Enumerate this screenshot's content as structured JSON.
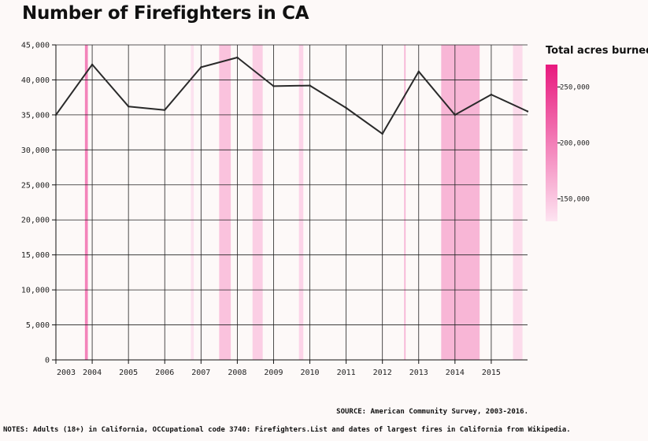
{
  "title": "Number of Firefighters in CA",
  "source": "SOURCE: American Community Survey, 2003-2016.",
  "notes": "NOTES: Adults (18+) in California, OCCupational code 3740: Firefighters.List and dates of largest fires in California from Wikipedia.",
  "colors": {
    "line": "#2a2a2a",
    "fire_low": "#fde4f1",
    "fire_high": "#e8197e",
    "grid": "#222222"
  },
  "chart_data": {
    "type": "line",
    "title": "Number of Firefighters in CA",
    "xlabel": "",
    "ylabel": "",
    "xlim": [
      2003,
      2016
    ],
    "ylim": [
      0,
      45000
    ],
    "x_ticks": [
      2003,
      2004,
      2005,
      2006,
      2007,
      2008,
      2009,
      2010,
      2011,
      2012,
      2013,
      2014,
      2015
    ],
    "y_ticks": [
      0,
      5000,
      10000,
      15000,
      20000,
      25000,
      30000,
      35000,
      40000,
      45000
    ],
    "y_tick_labels": [
      "0",
      "5,000",
      "10,000",
      "15,000",
      "20,000",
      "25,000",
      "30,000",
      "35,000",
      "40,000",
      "45,000"
    ],
    "grid": true,
    "series": [
      {
        "x": [
          2003,
          2004,
          2005,
          2006,
          2007,
          2008,
          2009,
          2010,
          2011,
          2012,
          2013,
          2014,
          2015,
          2016
        ],
        "values": [
          35000,
          42200,
          36200,
          35700,
          41800,
          43200,
          39100,
          39200,
          36000,
          32300,
          41200,
          35000,
          37900,
          35500
        ]
      }
    ],
    "fires": [
      {
        "start": 2003.8,
        "end": 2003.88,
        "acres": 210000
      },
      {
        "start": 2006.72,
        "end": 2006.8,
        "acres": 135000
      },
      {
        "start": 2007.5,
        "end": 2007.82,
        "acres": 160000
      },
      {
        "start": 2008.42,
        "end": 2008.7,
        "acres": 150000
      },
      {
        "start": 2009.7,
        "end": 2009.82,
        "acres": 145000
      },
      {
        "start": 2012.6,
        "end": 2012.64,
        "acres": 170000
      },
      {
        "start": 2013.62,
        "end": 2014.68,
        "acres": 170000
      },
      {
        "start": 2015.6,
        "end": 2015.86,
        "acres": 140000
      }
    ],
    "legend": {
      "title": "Total acres burned",
      "min": 130000,
      "max": 270000,
      "ticks": [
        150000,
        200000,
        250000
      ],
      "tick_labels": [
        "150,000",
        "200,000",
        "250,000"
      ],
      "placement": "right"
    }
  }
}
